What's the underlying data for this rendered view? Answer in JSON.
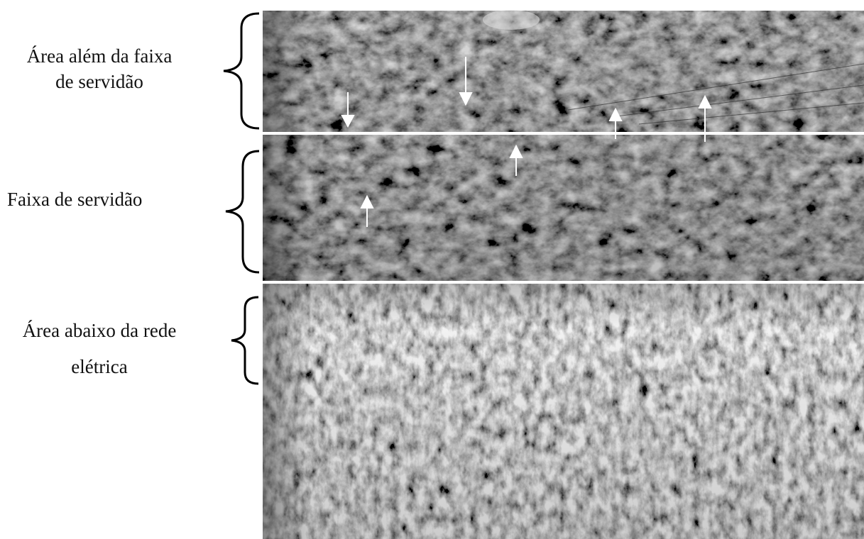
{
  "labels": [
    {
      "lines": [
        "Área além da faixa",
        "de servidão"
      ]
    },
    {
      "lines": [
        "Faixa de servidão"
      ]
    },
    {
      "lines": [
        "Área abaixo da rede",
        "elétrica"
      ]
    }
  ]
}
